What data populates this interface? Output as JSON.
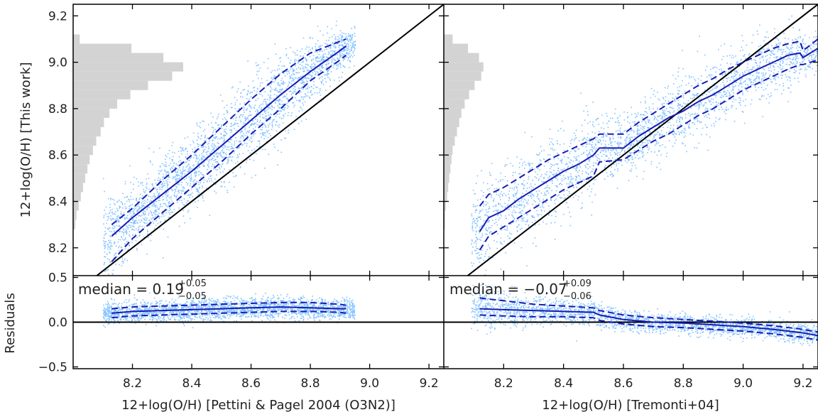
{
  "figure": {
    "left_xlabel": "12+log(O/H) [Pettini & Pagel 2004 (O3N2)]",
    "right_xlabel": "12+log(O/H) [Tremonti+04]",
    "top_ylabel": "12+log(O/H) [This work]",
    "bottom_ylabel": "Residuals"
  },
  "colors": {
    "scatter": "#1e90ff",
    "median_line": "#1a1ab4",
    "one_to_one": "#000000",
    "histogram": "#d3d3d3"
  },
  "chart_data": [
    {
      "panel": "top-left",
      "type": "scatter",
      "xlim": [
        8.0,
        9.25
      ],
      "ylim": [
        8.08,
        9.25
      ],
      "xticks": [
        8.2,
        8.4,
        8.6,
        8.8,
        9.0,
        9.2
      ],
      "yticks": [
        8.2,
        8.4,
        8.6,
        8.8,
        9.0,
        9.2
      ],
      "ytick_labels": [
        "8.2",
        "8.4",
        "8.6",
        "8.8",
        "9.0",
        "9.2"
      ],
      "one_to_one_line": true,
      "running_median": {
        "x": [
          8.13,
          8.2,
          8.3,
          8.4,
          8.5,
          8.6,
          8.7,
          8.8,
          8.9,
          8.92
        ],
        "median": [
          8.25,
          8.33,
          8.43,
          8.53,
          8.64,
          8.75,
          8.86,
          8.96,
          9.05,
          9.07
        ],
        "p16": [
          8.14,
          8.24,
          8.35,
          8.46,
          8.57,
          8.69,
          8.8,
          8.92,
          9.01,
          9.03
        ],
        "p84": [
          8.3,
          8.37,
          8.49,
          8.6,
          8.72,
          8.84,
          8.95,
          9.04,
          9.09,
          9.1
        ]
      },
      "y_histogram": {
        "bin_edges": [
          8.28,
          8.32,
          8.36,
          8.4,
          8.44,
          8.48,
          8.52,
          8.56,
          8.6,
          8.64,
          8.68,
          8.72,
          8.76,
          8.8,
          8.84,
          8.88,
          8.92,
          8.96,
          9.0,
          9.04,
          9.08,
          9.12
        ],
        "relative_counts": [
          0.02,
          0.03,
          0.05,
          0.07,
          0.09,
          0.11,
          0.13,
          0.15,
          0.18,
          0.21,
          0.25,
          0.28,
          0.33,
          0.4,
          0.52,
          0.68,
          0.9,
          1.0,
          0.82,
          0.53,
          0.06
        ]
      }
    },
    {
      "panel": "top-right",
      "type": "scatter",
      "xlim": [
        8.0,
        9.25
      ],
      "ylim": [
        8.08,
        9.25
      ],
      "xticks": [
        8.2,
        8.4,
        8.6,
        8.8,
        9.0,
        9.2
      ],
      "yticks": [
        8.2,
        8.4,
        8.6,
        8.8,
        9.0,
        9.2
      ],
      "one_to_one_line": true,
      "running_median": {
        "x": [
          8.12,
          8.15,
          8.2,
          8.25,
          8.3,
          8.35,
          8.4,
          8.45,
          8.5,
          8.52,
          8.6,
          8.65,
          8.7,
          8.75,
          8.8,
          8.85,
          8.9,
          8.95,
          9.0,
          9.05,
          9.1,
          9.15,
          9.19,
          9.2,
          9.25
        ],
        "median": [
          8.27,
          8.33,
          8.36,
          8.41,
          8.45,
          8.49,
          8.53,
          8.56,
          8.6,
          8.63,
          8.63,
          8.68,
          8.72,
          8.76,
          8.79,
          8.83,
          8.86,
          8.9,
          8.94,
          8.97,
          9.0,
          9.03,
          9.04,
          9.02,
          9.06
        ],
        "p16": [
          8.19,
          8.25,
          8.29,
          8.33,
          8.37,
          8.41,
          8.45,
          8.48,
          8.51,
          8.57,
          8.58,
          8.62,
          8.66,
          8.69,
          8.73,
          8.77,
          8.8,
          8.84,
          8.88,
          8.91,
          8.94,
          8.97,
          8.99,
          8.99,
          9.01
        ],
        "p84": [
          8.38,
          8.43,
          8.46,
          8.5,
          8.54,
          8.58,
          8.61,
          8.64,
          8.67,
          8.69,
          8.69,
          8.74,
          8.78,
          8.82,
          8.86,
          8.9,
          8.93,
          8.97,
          9.0,
          9.03,
          9.06,
          9.08,
          9.09,
          9.05,
          9.1
        ]
      },
      "y_histogram": {
        "bin_edges": [
          8.28,
          8.32,
          8.36,
          8.4,
          8.44,
          8.48,
          8.52,
          8.56,
          8.6,
          8.64,
          8.68,
          8.72,
          8.76,
          8.8,
          8.84,
          8.88,
          8.92,
          8.96,
          9.0,
          9.04,
          9.08,
          9.12
        ],
        "relative_counts": [
          0.01,
          0.01,
          0.02,
          0.03,
          0.04,
          0.05,
          0.06,
          0.07,
          0.08,
          0.1,
          0.12,
          0.14,
          0.16,
          0.19,
          0.23,
          0.28,
          0.34,
          0.36,
          0.32,
          0.22,
          0.08
        ]
      }
    },
    {
      "panel": "bottom-left",
      "type": "scatter",
      "xlim": [
        8.0,
        9.25
      ],
      "ylim": [
        -0.52,
        0.52
      ],
      "yticks": [
        -0.5,
        0.0,
        0.5
      ],
      "ytick_labels": [
        "−0.5",
        "0.0",
        "0.5"
      ],
      "xticks": [
        8.2,
        8.4,
        8.6,
        8.8,
        9.0,
        9.2
      ],
      "xtick_labels": [
        "8.2",
        "8.4",
        "8.6",
        "8.8",
        "9.0",
        "9.2"
      ],
      "zero_line": true,
      "annotation": {
        "prefix": "median = ",
        "value": "0.19",
        "plus": "+0.05",
        "minus": "−0.05"
      },
      "running_median": {
        "x": [
          8.13,
          8.2,
          8.3,
          8.4,
          8.5,
          8.6,
          8.7,
          8.8,
          8.9,
          8.92
        ],
        "median": [
          0.1,
          0.12,
          0.13,
          0.14,
          0.15,
          0.16,
          0.17,
          0.16,
          0.15,
          0.15
        ],
        "p16": [
          0.05,
          0.07,
          0.08,
          0.09,
          0.1,
          0.11,
          0.12,
          0.12,
          0.11,
          0.1
        ],
        "p84": [
          0.15,
          0.17,
          0.18,
          0.19,
          0.2,
          0.21,
          0.22,
          0.22,
          0.2,
          0.19
        ]
      }
    },
    {
      "panel": "bottom-right",
      "type": "scatter",
      "xlim": [
        8.0,
        9.25
      ],
      "ylim": [
        -0.52,
        0.52
      ],
      "yticks": [
        -0.5,
        0.0,
        0.5
      ],
      "xticks": [
        8.2,
        8.4,
        8.6,
        8.8,
        9.0,
        9.2
      ],
      "xtick_labels": [
        "8.2",
        "8.4",
        "8.6",
        "8.8",
        "9.0",
        "9.2"
      ],
      "zero_line": true,
      "annotation": {
        "prefix": "median = ",
        "value": "−0.07",
        "plus": "+0.09",
        "minus": "−0.06"
      },
      "running_median": {
        "x": [
          8.12,
          8.2,
          8.3,
          8.4,
          8.5,
          8.52,
          8.6,
          8.7,
          8.8,
          8.9,
          9.0,
          9.1,
          9.2,
          9.25
        ],
        "median": [
          0.15,
          0.14,
          0.13,
          0.12,
          0.11,
          0.08,
          0.03,
          0.0,
          -0.01,
          -0.03,
          -0.05,
          -0.08,
          -0.12,
          -0.15
        ],
        "p16": [
          0.08,
          0.07,
          0.06,
          0.06,
          0.05,
          0.02,
          -0.02,
          -0.05,
          -0.06,
          -0.08,
          -0.1,
          -0.13,
          -0.17,
          -0.2
        ],
        "p84": [
          0.27,
          0.24,
          0.2,
          0.18,
          0.16,
          0.13,
          0.08,
          0.05,
          0.03,
          0.01,
          -0.01,
          -0.04,
          -0.08,
          -0.11
        ]
      }
    }
  ]
}
